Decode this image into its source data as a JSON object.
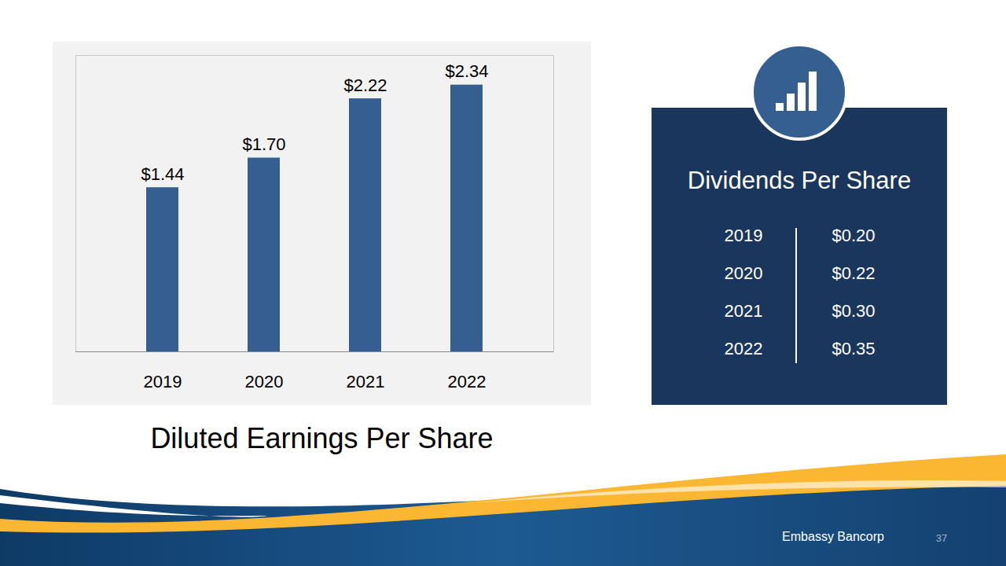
{
  "chart_data": {
    "type": "bar",
    "title": "Diluted Earnings Per Share",
    "categories": [
      "2019",
      "2020",
      "2021",
      "2022"
    ],
    "values": [
      1.44,
      1.7,
      2.22,
      2.34
    ],
    "value_labels": [
      "$1.44",
      "$1.70",
      "$2.22",
      "$2.34"
    ],
    "color": "#365f91",
    "ylim": [
      0,
      2.6
    ],
    "data_labels": true,
    "tick_labels": "x"
  },
  "dividends_panel": {
    "title": "Dividends Per Share",
    "rows": [
      [
        "2019",
        "$0.20"
      ],
      [
        "2020",
        "$0.22"
      ],
      [
        "2021",
        "$0.30"
      ],
      [
        "2022",
        "$0.35"
      ]
    ]
  },
  "footer": {
    "company": "Embassy Bancorp",
    "page": "37"
  }
}
